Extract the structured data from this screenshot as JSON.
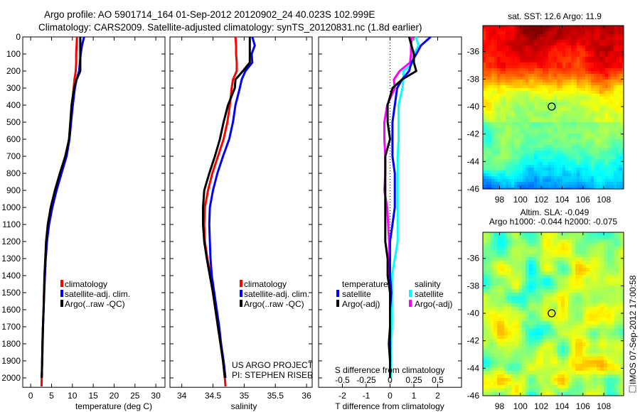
{
  "title": {
    "line1": "Argo profile: AO 5901714_164 01-Sep-2012 20120902_24 40.023S 102.999E",
    "line2": "Climatology: CARS2009. Satellite-adjusted climatology: synTS_20120831.nc (1.8d earlier)"
  },
  "depth_ticks": [
    0,
    100,
    200,
    300,
    400,
    500,
    600,
    700,
    800,
    900,
    1000,
    1100,
    1200,
    1300,
    1400,
    1500,
    1600,
    1700,
    1800,
    1900,
    2000
  ],
  "depth_ylim": [
    2055,
    0
  ],
  "profile_legend": [
    "climatology",
    "satellite-adj. clim.",
    "Argo(..raw -QC)"
  ],
  "colors": {
    "climatology": "#ff0000",
    "satellite": "#0000ff",
    "argo": "#000000",
    "sal_satellite": "#00ffff",
    "sal_argo": "#ff00ff"
  },
  "credit": {
    "line1": "US ARGO PROJECT",
    "line2": "PI: STEPHEN RISER"
  },
  "footer_stamp": "IMOS 07-Sep-2012 17:00:58",
  "chart_data": [
    {
      "type": "line",
      "xlabel": "temperature (deg C)",
      "ylabel": "depth",
      "xlim": [
        -1.9,
        32.2
      ],
      "xticks": [
        0,
        5,
        10,
        15,
        20,
        25,
        30
      ],
      "depth": [
        0,
        50,
        100,
        150,
        200,
        250,
        300,
        400,
        500,
        600,
        700,
        800,
        900,
        1000,
        1100,
        1200,
        1300,
        1400,
        1500,
        1600,
        1700,
        1800,
        1900,
        2000,
        2050
      ],
      "series": [
        {
          "name": "climatology",
          "values": [
            11.1,
            11.0,
            10.9,
            10.9,
            10.8,
            10.5,
            10.3,
            9.9,
            9.6,
            9.2,
            8.5,
            7.2,
            6.0,
            5.0,
            4.3,
            3.9,
            3.6,
            3.4,
            3.2,
            3.1,
            2.95,
            2.85,
            2.75,
            2.65,
            2.6
          ]
        },
        {
          "name": "satellite-adj. clim.",
          "values": [
            12.8,
            12.3,
            12.0,
            11.8,
            11.6,
            11.0,
            10.6,
            10.1,
            9.7,
            9.3,
            8.6,
            7.4,
            6.2,
            5.2,
            4.4,
            3.9,
            3.6,
            3.4,
            3.25,
            3.1,
            2.95,
            2.85,
            2.75,
            2.65,
            null
          ]
        },
        {
          "name": "Argo(..raw -QC)",
          "values": [
            11.9,
            11.9,
            11.9,
            11.9,
            11.9,
            11.0,
            10.4,
            9.8,
            9.5,
            9.2,
            8.3,
            7.0,
            5.8,
            4.8,
            4.1,
            3.7,
            3.5,
            3.3,
            3.2,
            3.1,
            2.95,
            2.8,
            2.75,
            2.65,
            null
          ]
        }
      ]
    },
    {
      "type": "line",
      "xlabel": "salinity",
      "ylabel": "depth",
      "xlim": [
        33.81,
        36.09
      ],
      "xticks": [
        34,
        34.5,
        35,
        35.5,
        36
      ],
      "depth": [
        0,
        50,
        100,
        150,
        200,
        250,
        300,
        400,
        500,
        600,
        700,
        800,
        900,
        1000,
        1100,
        1200,
        1300,
        1400,
        1500,
        1600,
        1700,
        1800,
        1900,
        2000,
        2050
      ],
      "series": [
        {
          "name": "climatology",
          "values": [
            34.86,
            34.87,
            34.87,
            34.88,
            34.88,
            34.82,
            34.8,
            34.77,
            34.73,
            34.67,
            34.58,
            34.49,
            34.42,
            34.37,
            34.36,
            34.37,
            34.41,
            34.46,
            34.5,
            34.54,
            34.58,
            34.62,
            34.66,
            34.69,
            34.7
          ]
        },
        {
          "name": "satellite-adj. clim.",
          "values": [
            35.13,
            35.17,
            35.12,
            35.13,
            35.02,
            34.96,
            34.93,
            34.86,
            34.82,
            34.76,
            34.66,
            34.57,
            34.5,
            34.45,
            34.44,
            34.45,
            34.46,
            34.48,
            34.52,
            34.56,
            34.6,
            34.63,
            34.67,
            34.7,
            null
          ]
        },
        {
          "name": "Argo(..raw -QC)",
          "values": [
            35.09,
            35.09,
            35.09,
            35.09,
            34.98,
            34.86,
            34.85,
            34.74,
            34.67,
            34.61,
            34.53,
            34.44,
            34.36,
            34.34,
            34.34,
            34.36,
            34.4,
            34.45,
            34.5,
            34.54,
            34.58,
            34.62,
            34.66,
            34.69,
            null
          ]
        }
      ]
    },
    {
      "type": "line",
      "xlabel": "T difference from climatology",
      "xlabel_secondary": "S difference from climatology",
      "xlim": [
        -3,
        3
      ],
      "xlim_secondary": [
        -0.75,
        0.75
      ],
      "xticks": [
        -2,
        -1,
        0,
        1,
        2
      ],
      "xticks_secondary": [
        "-0.5",
        "-0.25",
        "0",
        "0.25",
        "0.5"
      ],
      "xticks_secondary_values": [
        -0.5,
        -0.25,
        0,
        0.25,
        0.5
      ],
      "legend": {
        "temperature_heading": "temperature",
        "salinity_heading": "salinity",
        "entries": [
          "satellite",
          "Argo(-adj)",
          "satellite",
          "Argo(-adj)"
        ]
      },
      "derived_from": "satellite and Argo minus climatology (panels 1 and 2)"
    },
    {
      "type": "heatmap",
      "title": "sat. SST: 12.6 Argo: 11.9",
      "xlim": [
        96.4,
        109.9
      ],
      "ylim": [
        -46,
        -34.1
      ],
      "xticks": [
        98,
        100,
        102,
        104,
        106,
        108
      ],
      "yticks": [
        -36,
        -38,
        -40,
        -42,
        -44,
        -46
      ],
      "marker": {
        "lon": 103,
        "lat": -40
      },
      "colormap": "jet"
    },
    {
      "type": "heatmap",
      "title": "Altim. SLA: -0.049",
      "subtitle": "Argo h1000: -0.044 h2000: -0.075",
      "xlim": [
        96.4,
        109.9
      ],
      "ylim": [
        -46,
        -34.1
      ],
      "xticks": [
        98,
        100,
        102,
        104,
        106,
        108
      ],
      "yticks": [
        -36,
        -38,
        -40,
        -42,
        -44,
        -46
      ],
      "marker": {
        "lon": 103,
        "lat": -40
      },
      "colormap": "jet"
    }
  ]
}
